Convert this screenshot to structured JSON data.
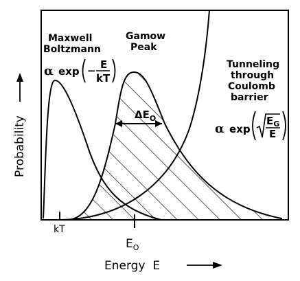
{
  "axes": {
    "y_label": "Probability",
    "x_label": "Energy  E",
    "ticks": {
      "kt": "kT",
      "e0": "E",
      "e0_sub": "O"
    }
  },
  "curves": {
    "maxwell": {
      "line1": "Maxwell",
      "line2": "Boltzmann",
      "alpha": "α",
      "exp": "exp",
      "minus": "−",
      "num": "E",
      "den": "kT"
    },
    "gamow": {
      "line1": "Gamow",
      "line2": "Peak",
      "width_delta": "Δ",
      "width_e": "E",
      "width_sub": "O"
    },
    "tunneling": {
      "line1": "Tunneling",
      "line2": "through",
      "line3": "Coulomb",
      "line4": "barrier",
      "alpha": "α",
      "exp": "exp",
      "num": "E",
      "num_sub": "G",
      "den": "E"
    }
  },
  "colors": {
    "ink": "#000000",
    "background": "#ffffff"
  }
}
